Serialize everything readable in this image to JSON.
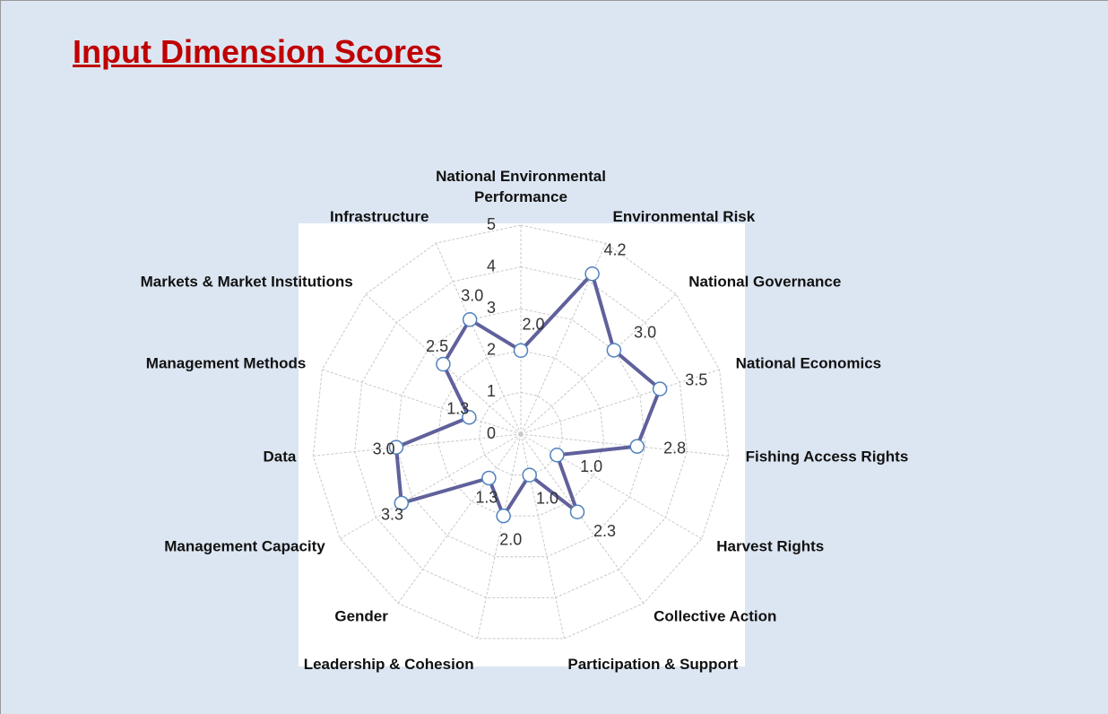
{
  "chart_data": {
    "type": "radar",
    "title": "Input Dimension Scores",
    "categories": [
      "National Environmental Performance",
      "Environmental Risk",
      "National Governance",
      "National Economics",
      "Fishing Access Rights",
      "Harvest Rights",
      "Collective Action",
      "Participation & Support",
      "Leadership & Cohesion",
      "Gender",
      "Management Capacity",
      "Data",
      "Management Methods",
      "Markets & Market Institutions",
      "Infrastructure"
    ],
    "values": [
      2.0,
      4.2,
      3.0,
      3.5,
      2.8,
      1.0,
      2.3,
      1.0,
      2.0,
      1.3,
      3.3,
      3.0,
      1.3,
      2.5,
      3.0
    ],
    "value_labels": [
      "2.0",
      "4.2",
      "3.0",
      "3.5",
      "2.8",
      "1.0",
      "2.3",
      "1.0",
      "2.0",
      "1.3",
      "3.3",
      "3.0",
      "1.3",
      "2.5",
      "3.0"
    ],
    "color": "#60609c",
    "marker_edge_color": "#4f81bd",
    "rlim": [
      0,
      5
    ],
    "rticks": [
      0,
      1,
      2,
      3,
      4,
      5
    ],
    "grid": true
  }
}
